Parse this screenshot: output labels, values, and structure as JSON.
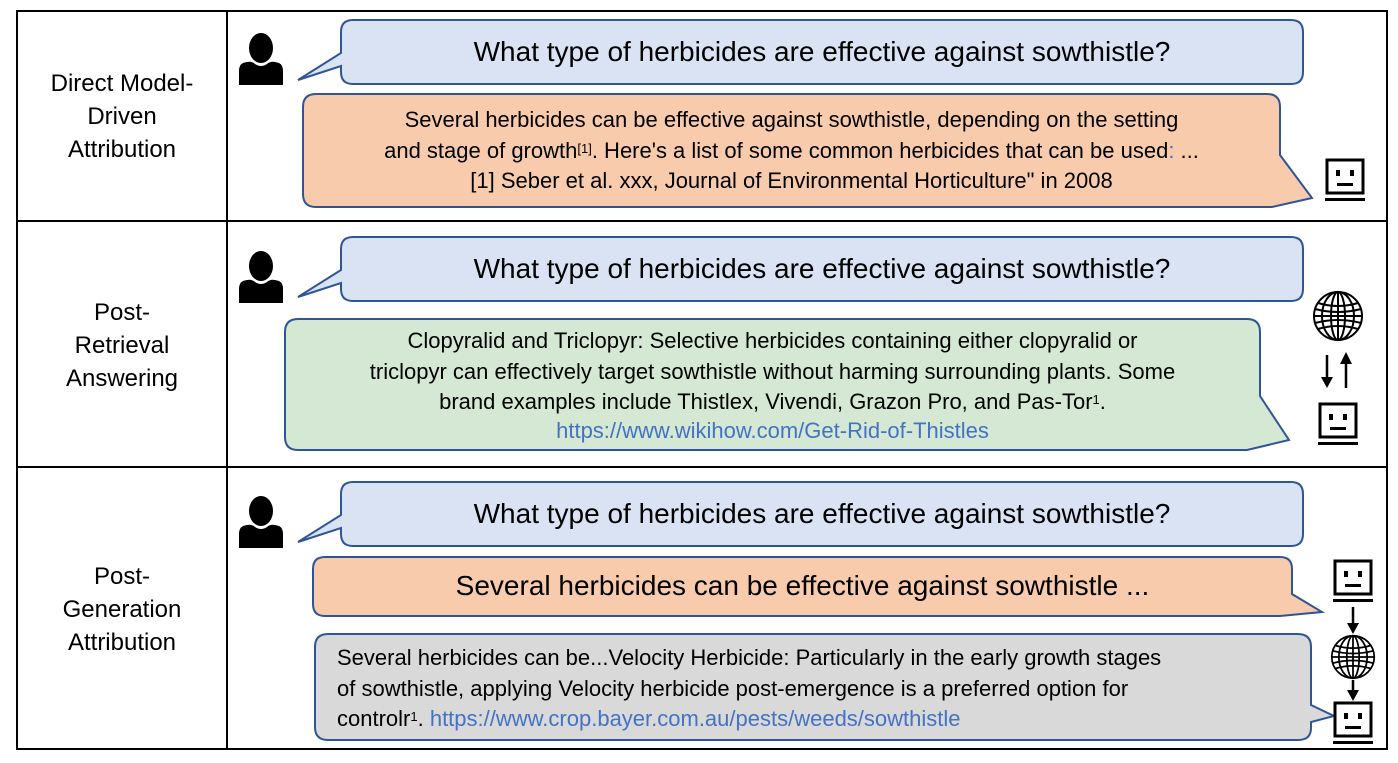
{
  "rows": [
    {
      "label_lines": [
        "Direct Model-",
        "Driven",
        "Attribution"
      ],
      "question": "What type of herbicides are effective against sowthistle?",
      "answer": {
        "line1": "Several herbicides can be effective against sowthistle, depending on the setting",
        "line2_pre": "and stage of growth",
        "line2_sup": "[1]",
        "line2_post": ". Here's a list of some common herbicides that can be used",
        "line2_colon": ":",
        "line2_end": " ...",
        "line3": "[1] Seber et al. xxx, Journal of Environmental Horticulture\" in 2008"
      }
    },
    {
      "label_lines": [
        "Post-",
        "Retrieval",
        "Answering"
      ],
      "question": "What type of herbicides are effective against sowthistle?",
      "answer": {
        "line1": "Clopyralid and Triclopyr: Selective herbicides containing either clopyralid or",
        "line2": "triclopyr can effectively target sowthistle without harming surrounding plants. Some",
        "line3_pre": "brand examples include Thistlex, Vivendi, Grazon Pro, and Pas-Tor",
        "line3_sup": "1",
        "line3_post": ".",
        "link": "https://www.wikihow.com/Get-Rid-of-Thistles"
      }
    },
    {
      "label_lines": [
        "Post-",
        "Generation",
        "Attribution"
      ],
      "question": "What type of herbicides are effective against sowthistle?",
      "draft": "Several herbicides can be effective against sowthistle ...",
      "answer": {
        "line1": "Several herbicides can be...Velocity Herbicide: Particularly in the early growth stages",
        "line2": "of sowthistle, applying Velocity herbicide post-emergence is a preferred option for",
        "line3_pre": "controlr",
        "line3_sup": "1",
        "line3_post": ". ",
        "link": "https://www.crop.bayer.com.au/pests/weeds/sowthistle"
      }
    }
  ],
  "colors": {
    "question_fill": "#dae3f3",
    "bubble_stroke": "#2f5597",
    "orange_fill": "#f8cbad",
    "green_fill": "#d5e8d4",
    "gray_fill": "#d9d9d9",
    "link": "#4472c4"
  },
  "icons": [
    "person-icon",
    "robot-icon",
    "globe-icon",
    "arrow-icon"
  ]
}
